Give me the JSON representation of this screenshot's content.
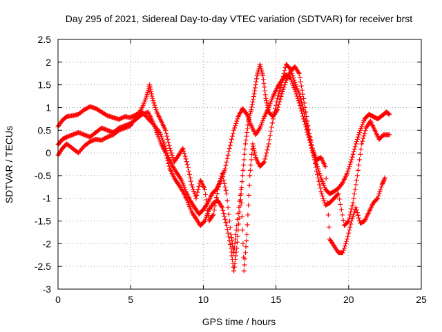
{
  "chart_data": {
    "type": "scatter",
    "title": "Day 295 of 2021, Sidereal Day-to-day VTEC variation (SDTVAR) for receiver brst",
    "xlabel": "GPS time / hours",
    "ylabel": "SDTVAR / TECUs",
    "xlim": [
      0,
      25
    ],
    "ylim": [
      -3,
      2.5
    ],
    "xticks": [
      0,
      5,
      10,
      15,
      20,
      25
    ],
    "yticks": [
      -3,
      -2.5,
      -2,
      -1.5,
      -1,
      -0.5,
      0,
      0.5,
      1,
      1.5,
      2,
      2.5
    ],
    "grid": true,
    "marker": "+",
    "color": "#ff0000",
    "series": [
      {
        "points": [
          [
            0.0,
            0.58
          ],
          [
            0.3,
            0.72
          ],
          [
            0.6,
            0.8
          ],
          [
            1.0,
            0.82
          ],
          [
            1.4,
            0.85
          ],
          [
            1.8,
            0.95
          ],
          [
            2.2,
            1.02
          ],
          [
            2.6,
            0.98
          ],
          [
            3.0,
            0.9
          ],
          [
            3.4,
            0.82
          ],
          [
            3.8,
            0.78
          ],
          [
            4.2,
            0.74
          ],
          [
            4.6,
            0.8
          ],
          [
            5.0,
            0.78
          ],
          [
            5.4,
            0.85
          ],
          [
            5.8,
            0.9
          ],
          [
            6.2,
            0.75
          ],
          [
            6.6,
            0.62
          ],
          [
            7.0,
            0.45
          ],
          [
            7.3,
            0.2
          ],
          [
            7.6,
            -0.1
          ],
          [
            7.9,
            -0.3
          ],
          [
            8.2,
            -0.45
          ],
          [
            8.5,
            -0.6
          ],
          [
            8.8,
            -0.85
          ],
          [
            9.1,
            -1.05
          ],
          [
            9.4,
            -1.2
          ],
          [
            9.7,
            -1.35
          ],
          [
            10.0,
            -1.25
          ],
          [
            10.3,
            -1.1
          ],
          [
            10.6,
            -0.9
          ],
          [
            10.9,
            -0.8
          ],
          [
            11.2,
            -0.6
          ],
          [
            11.5,
            -0.35
          ],
          [
            11.8,
            0.1
          ],
          [
            12.1,
            0.5
          ],
          [
            12.4,
            0.8
          ],
          [
            12.7,
            0.98
          ],
          [
            13.0,
            0.85
          ],
          [
            13.3,
            0.6
          ],
          [
            13.6,
            0.4
          ],
          [
            13.9,
            0.55
          ],
          [
            14.2,
            0.8
          ],
          [
            14.5,
            1.0
          ],
          [
            14.8,
            1.25
          ],
          [
            15.1,
            1.45
          ],
          [
            15.4,
            1.6
          ],
          [
            15.7,
            1.72
          ],
          [
            16.0,
            1.65
          ],
          [
            16.3,
            1.4
          ],
          [
            16.6,
            1.1
          ],
          [
            16.9,
            0.75
          ],
          [
            17.2,
            0.4
          ],
          [
            17.5,
            0.05
          ],
          [
            17.8,
            -0.25
          ],
          [
            18.1,
            -0.55
          ],
          [
            18.4,
            -0.8
          ],
          [
            18.7,
            -0.9
          ],
          [
            19.0,
            -0.85
          ],
          [
            19.3,
            -0.78
          ],
          [
            19.6,
            -0.65
          ],
          [
            19.9,
            -0.45
          ],
          [
            20.2,
            -0.15
          ],
          [
            20.5,
            0.2
          ],
          [
            20.8,
            0.5
          ],
          [
            21.1,
            0.75
          ],
          [
            21.4,
            0.85
          ],
          [
            21.7,
            0.8
          ],
          [
            22.0,
            0.75
          ],
          [
            22.3,
            0.82
          ],
          [
            22.6,
            0.9
          ],
          [
            22.8,
            0.85
          ]
        ]
      },
      {
        "points": [
          [
            0.0,
            0.18
          ],
          [
            0.3,
            0.3
          ],
          [
            0.6,
            0.35
          ],
          [
            1.0,
            0.4
          ],
          [
            1.4,
            0.45
          ],
          [
            1.8,
            0.4
          ],
          [
            2.2,
            0.35
          ],
          [
            2.6,
            0.45
          ],
          [
            3.0,
            0.55
          ],
          [
            3.4,
            0.5
          ],
          [
            3.8,
            0.45
          ],
          [
            4.2,
            0.55
          ],
          [
            4.6,
            0.6
          ],
          [
            5.0,
            0.65
          ],
          [
            5.4,
            0.75
          ],
          [
            5.8,
            0.85
          ],
          [
            6.2,
            0.9
          ],
          [
            6.5,
            0.7
          ],
          [
            6.8,
            0.45
          ],
          [
            7.1,
            0.2
          ],
          [
            7.4,
            0.0
          ],
          [
            7.7,
            -0.35
          ],
          [
            8.0,
            -0.55
          ],
          [
            8.3,
            -0.7
          ],
          [
            8.6,
            -0.85
          ],
          [
            8.9,
            -1.05
          ],
          [
            9.2,
            -1.3
          ],
          [
            9.5,
            -1.45
          ],
          [
            9.8,
            -1.6
          ],
          [
            10.1,
            -1.5
          ],
          [
            10.4,
            -1.25
          ],
          [
            10.7,
            -1.1
          ],
          [
            11.0,
            -1.05
          ],
          [
            11.3,
            -1.2
          ],
          [
            11.6,
            -1.6
          ],
          [
            11.9,
            -2.1
          ],
          [
            12.1,
            -2.6
          ],
          [
            12.3,
            -2.1
          ],
          [
            12.5,
            -1.3
          ],
          [
            12.7,
            -0.5
          ],
          [
            12.9,
            0.2
          ],
          [
            13.1,
            0.7
          ],
          [
            13.3,
            0.95
          ],
          [
            13.5,
            1.3
          ],
          [
            13.7,
            1.7
          ],
          [
            13.9,
            1.95
          ],
          [
            14.1,
            1.7
          ],
          [
            14.3,
            1.2
          ],
          [
            14.5,
            0.9
          ],
          [
            14.8,
            0.8
          ],
          [
            15.1,
            0.95
          ],
          [
            15.4,
            1.3
          ],
          [
            15.7,
            1.6
          ],
          [
            16.0,
            1.8
          ],
          [
            16.3,
            1.9
          ],
          [
            16.6,
            1.75
          ],
          [
            16.9,
            1.2
          ],
          [
            17.2,
            0.6
          ],
          [
            17.5,
            0.1
          ],
          [
            17.8,
            -0.4
          ],
          [
            18.1,
            -0.85
          ],
          [
            18.4,
            -1.15
          ],
          [
            18.7,
            -1.1
          ],
          [
            19.0,
            -1.0
          ],
          [
            19.3,
            -0.9
          ],
          [
            19.7,
            -1.6
          ],
          [
            20.0,
            -1.5
          ],
          [
            20.3,
            -1.1
          ],
          [
            20.6,
            -0.5
          ],
          [
            20.9,
            0.2
          ],
          [
            21.2,
            0.55
          ],
          [
            21.5,
            0.7
          ],
          [
            21.8,
            0.5
          ],
          [
            22.1,
            0.3
          ],
          [
            22.4,
            0.4
          ],
          [
            22.8,
            0.4
          ]
        ]
      },
      {
        "points": [
          [
            0.0,
            -0.05
          ],
          [
            0.3,
            0.1
          ],
          [
            0.6,
            0.2
          ],
          [
            1.0,
            0.1
          ],
          [
            1.4,
            0.0
          ],
          [
            1.8,
            0.15
          ],
          [
            2.2,
            0.25
          ],
          [
            2.6,
            0.3
          ],
          [
            3.0,
            0.28
          ],
          [
            3.4,
            0.35
          ],
          [
            3.8,
            0.4
          ],
          [
            4.2,
            0.5
          ],
          [
            4.6,
            0.55
          ],
          [
            5.0,
            0.6
          ],
          [
            5.4,
            0.8
          ],
          [
            5.8,
            1.0
          ],
          [
            6.1,
            1.25
          ],
          [
            6.3,
            1.5
          ],
          [
            6.5,
            1.2
          ],
          [
            6.8,
            0.9
          ],
          [
            7.1,
            0.7
          ],
          [
            7.4,
            0.5
          ],
          [
            7.7,
            0.1
          ],
          [
            8.0,
            -0.2
          ],
          [
            8.3,
            -0.05
          ],
          [
            8.6,
            0.1
          ],
          [
            8.9,
            -0.25
          ],
          [
            9.2,
            -0.7
          ],
          [
            9.5,
            -1.0
          ],
          [
            9.8,
            -0.6
          ],
          [
            10.1,
            -0.8
          ],
          [
            10.4,
            -1.5
          ],
          [
            10.7,
            -1.35
          ],
          [
            11.0,
            -0.8
          ],
          [
            11.3,
            -0.45
          ],
          [
            11.6,
            -0.9
          ],
          [
            11.9,
            -1.8
          ],
          [
            12.1,
            -2.2
          ],
          [
            12.3,
            -1.6
          ],
          [
            12.6,
            -0.8
          ],
          [
            12.8,
            -2.6
          ],
          [
            13.0,
            -1.8
          ],
          [
            13.2,
            -0.5
          ],
          [
            13.4,
            0.2
          ],
          [
            13.6,
            -0.1
          ],
          [
            13.9,
            -0.3
          ],
          [
            14.2,
            -0.2
          ],
          [
            14.5,
            0.2
          ],
          [
            14.8,
            0.75
          ],
          [
            15.1,
            1.2
          ],
          [
            15.4,
            1.55
          ],
          [
            15.7,
            1.95
          ],
          [
            16.0,
            1.85
          ],
          [
            16.3,
            1.55
          ],
          [
            16.6,
            1.3
          ],
          [
            16.9,
            0.95
          ],
          [
            17.2,
            0.5
          ],
          [
            17.5,
            0.1
          ],
          [
            17.8,
            -0.15
          ],
          [
            18.1,
            -0.1
          ],
          [
            18.4,
            -0.3
          ],
          [
            18.7,
            -1.9
          ],
          [
            19.0,
            -2.05
          ],
          [
            19.3,
            -2.2
          ],
          [
            19.6,
            -2.2
          ],
          [
            19.9,
            -1.9
          ],
          [
            20.2,
            -1.5
          ],
          [
            20.5,
            -1.2
          ],
          [
            20.8,
            -1.55
          ],
          [
            21.1,
            -1.5
          ],
          [
            21.4,
            -1.3
          ],
          [
            21.7,
            -1.1
          ],
          [
            22.0,
            -1.0
          ],
          [
            22.3,
            -0.7
          ],
          [
            22.5,
            -0.55
          ]
        ]
      }
    ]
  }
}
